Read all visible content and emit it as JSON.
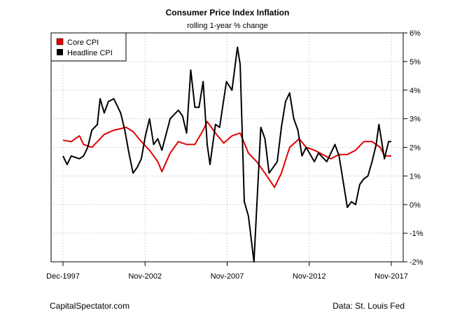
{
  "chart_data": {
    "type": "line",
    "title": "Consumer Price Index Inflation",
    "subtitle": "rolling 1-year % change",
    "xlabel": "",
    "ylabel": "",
    "x_ticks": [
      "Dec-1997",
      "Nov-2002",
      "Nov-2007",
      "Nov-2012",
      "Nov-2017"
    ],
    "y_ticks": [
      "6%",
      "5%",
      "4%",
      "3%",
      "2%",
      "1%",
      "0%",
      "-1%",
      "-2%"
    ],
    "ylim": [
      -2,
      6
    ],
    "xlim": [
      "1997-12",
      "2017-11"
    ],
    "grid": true,
    "legend_position": "top-left",
    "series": [
      {
        "name": "Core CPI",
        "color": "#e00000",
        "points": [
          [
            "1997-12",
            2.25
          ],
          [
            "1998-06",
            2.2
          ],
          [
            "1998-12",
            2.4
          ],
          [
            "1999-03",
            2.1
          ],
          [
            "1999-09",
            2.0
          ],
          [
            "2000-01",
            2.2
          ],
          [
            "2000-06",
            2.45
          ],
          [
            "2001-01",
            2.6
          ],
          [
            "2001-06",
            2.65
          ],
          [
            "2001-10",
            2.7
          ],
          [
            "2002-03",
            2.55
          ],
          [
            "2002-09",
            2.2
          ],
          [
            "2003-03",
            1.9
          ],
          [
            "2003-09",
            1.5
          ],
          [
            "2003-12",
            1.15
          ],
          [
            "2004-06",
            1.8
          ],
          [
            "2004-12",
            2.2
          ],
          [
            "2005-06",
            2.1
          ],
          [
            "2005-12",
            2.1
          ],
          [
            "2006-06",
            2.6
          ],
          [
            "2006-09",
            2.9
          ],
          [
            "2007-03",
            2.5
          ],
          [
            "2007-09",
            2.15
          ],
          [
            "2008-03",
            2.4
          ],
          [
            "2008-09",
            2.5
          ],
          [
            "2009-03",
            1.8
          ],
          [
            "2009-09",
            1.5
          ],
          [
            "2010-03",
            1.1
          ],
          [
            "2010-10",
            0.6
          ],
          [
            "2011-03",
            1.1
          ],
          [
            "2011-09",
            2.0
          ],
          [
            "2012-04",
            2.3
          ],
          [
            "2012-09",
            2.0
          ],
          [
            "2013-03",
            1.9
          ],
          [
            "2013-09",
            1.75
          ],
          [
            "2014-03",
            1.6
          ],
          [
            "2014-09",
            1.75
          ],
          [
            "2015-03",
            1.75
          ],
          [
            "2015-09",
            1.9
          ],
          [
            "2016-03",
            2.2
          ],
          [
            "2016-09",
            2.2
          ],
          [
            "2017-03",
            2.0
          ],
          [
            "2017-06",
            1.7
          ],
          [
            "2017-11",
            1.7
          ]
        ]
      },
      {
        "name": "Headline CPI",
        "color": "#000000",
        "points": [
          [
            "1997-12",
            1.7
          ],
          [
            "1998-03",
            1.4
          ],
          [
            "1998-06",
            1.7
          ],
          [
            "1998-12",
            1.6
          ],
          [
            "1999-03",
            1.7
          ],
          [
            "1999-06",
            2.0
          ],
          [
            "1999-09",
            2.6
          ],
          [
            "2000-01",
            2.8
          ],
          [
            "2000-03",
            3.7
          ],
          [
            "2000-06",
            3.2
          ],
          [
            "2000-09",
            3.6
          ],
          [
            "2001-01",
            3.7
          ],
          [
            "2001-06",
            3.2
          ],
          [
            "2001-09",
            2.6
          ],
          [
            "2001-12",
            1.8
          ],
          [
            "2002-03",
            1.1
          ],
          [
            "2002-06",
            1.3
          ],
          [
            "2002-09",
            1.6
          ],
          [
            "2002-12",
            2.4
          ],
          [
            "2003-03",
            3.0
          ],
          [
            "2003-06",
            2.1
          ],
          [
            "2003-09",
            2.3
          ],
          [
            "2003-12",
            1.9
          ],
          [
            "2004-06",
            3.0
          ],
          [
            "2004-12",
            3.3
          ],
          [
            "2005-03",
            3.1
          ],
          [
            "2005-06",
            2.5
          ],
          [
            "2005-09",
            4.7
          ],
          [
            "2005-12",
            3.4
          ],
          [
            "2006-03",
            3.4
          ],
          [
            "2006-06",
            4.3
          ],
          [
            "2006-09",
            2.1
          ],
          [
            "2006-11",
            1.4
          ],
          [
            "2007-03",
            2.8
          ],
          [
            "2007-06",
            2.7
          ],
          [
            "2007-11",
            4.3
          ],
          [
            "2008-03",
            4.0
          ],
          [
            "2008-07",
            5.5
          ],
          [
            "2008-09",
            4.9
          ],
          [
            "2008-12",
            0.1
          ],
          [
            "2009-03",
            -0.4
          ],
          [
            "2009-07",
            -2.0
          ],
          [
            "2009-12",
            2.7
          ],
          [
            "2010-03",
            2.3
          ],
          [
            "2010-06",
            1.1
          ],
          [
            "2010-12",
            1.5
          ],
          [
            "2011-03",
            2.7
          ],
          [
            "2011-06",
            3.6
          ],
          [
            "2011-09",
            3.9
          ],
          [
            "2011-12",
            3.0
          ],
          [
            "2012-03",
            2.6
          ],
          [
            "2012-06",
            1.7
          ],
          [
            "2012-09",
            2.0
          ],
          [
            "2013-03",
            1.5
          ],
          [
            "2013-06",
            1.8
          ],
          [
            "2013-12",
            1.5
          ],
          [
            "2014-06",
            2.1
          ],
          [
            "2014-09",
            1.7
          ],
          [
            "2014-12",
            0.8
          ],
          [
            "2015-03",
            -0.1
          ],
          [
            "2015-06",
            0.1
          ],
          [
            "2015-09",
            0.0
          ],
          [
            "2015-12",
            0.7
          ],
          [
            "2016-03",
            0.9
          ],
          [
            "2016-06",
            1.0
          ],
          [
            "2016-09",
            1.5
          ],
          [
            "2016-12",
            2.1
          ],
          [
            "2017-02",
            2.8
          ],
          [
            "2017-06",
            1.6
          ],
          [
            "2017-09",
            2.2
          ],
          [
            "2017-11",
            2.2
          ]
        ]
      }
    ]
  },
  "footer": {
    "left": "CapitalSpectator.com",
    "right": "Data: St. Louis Fed"
  }
}
